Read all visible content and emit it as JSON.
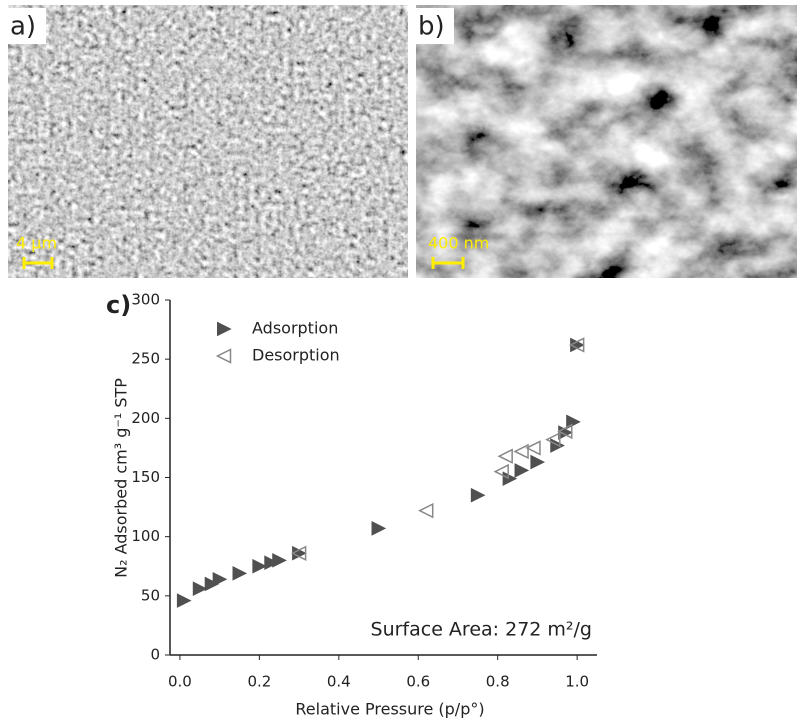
{
  "panels": [
    {
      "label": "a)",
      "scale_bar": "4 µm"
    },
    {
      "label": "b)",
      "scale_bar": "400 nm"
    }
  ],
  "chart_data": {
    "type": "scatter",
    "panel_label": "c)",
    "x_label": "Relative Pressure (p/p°)",
    "y_label": "N₂ Adsorbed cm³ g⁻¹ STP",
    "annotation": "Surface Area: 272 m²/g",
    "xlim": [
      -0.025,
      1.05
    ],
    "ylim": [
      0,
      300
    ],
    "xticks": [
      {
        "value": 0,
        "label": "0.0"
      },
      0.2,
      0.4,
      0.6,
      0.8,
      {
        "value": 1,
        "label": "1.0"
      }
    ],
    "yticks": [
      0,
      50,
      100,
      150,
      200,
      250,
      300
    ],
    "legend": "upper left",
    "series": [
      {
        "name": "Adsorption",
        "color": "#505050",
        "marker": "triangle-right",
        "filled": true,
        "x": [
          0.01,
          0.05,
          0.08,
          0.1,
          0.15,
          0.2,
          0.23,
          0.25,
          0.3,
          0.5,
          0.75,
          0.83,
          0.86,
          0.9,
          0.95,
          0.97,
          0.99,
          1.0
        ],
        "values": [
          46,
          56,
          60,
          64,
          69,
          75,
          78,
          80,
          86,
          107,
          135,
          149,
          156,
          163,
          177,
          188,
          197,
          262
        ]
      },
      {
        "name": "Desorption",
        "color": "#888888",
        "marker": "triangle-left",
        "filled": false,
        "x": [
          0.3,
          0.62,
          0.81,
          0.82,
          0.86,
          0.89,
          0.94,
          0.97,
          1.0
        ],
        "values": [
          86,
          122,
          155,
          168,
          172,
          175,
          182,
          189,
          262
        ]
      }
    ]
  }
}
